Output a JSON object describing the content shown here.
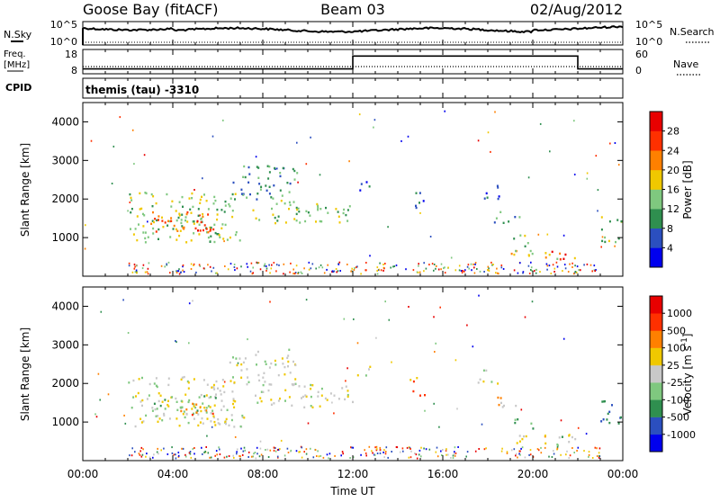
{
  "header": {
    "station": "Goose Bay (fitACF)",
    "beam": "Beam 03",
    "date": "02/Aug/2012"
  },
  "left_labels": {
    "nsky": "N.Sky",
    "freq": "Freq.",
    "freq_unit": "[MHz]",
    "cpid": "CPID"
  },
  "right_labels": {
    "nsearch": "N.Search",
    "nave": "Nave"
  },
  "noise_axis": {
    "top": "10^5",
    "bottom": "10^0"
  },
  "freq_axis": {
    "top": "18",
    "bottom": "8"
  },
  "nave_axis": {
    "top": "60",
    "bottom": "0"
  },
  "cpid_text": "themis (tau) -3310",
  "chart_data": [
    {
      "type": "line",
      "name": "noise-panel",
      "x_range_hours": [
        0,
        24
      ],
      "series": [
        {
          "name": "N.Sky",
          "style": "solid",
          "level_fraction": 0.72
        },
        {
          "name": "N.Search",
          "style": "dotted",
          "level_fraction": 0.1
        }
      ]
    },
    {
      "type": "line",
      "name": "frequency-panel",
      "series": [
        {
          "name": "Freq.",
          "x": [
            0,
            12,
            12,
            22,
            22,
            24
          ],
          "y_mhz": [
            10,
            10,
            15.3,
            15.3,
            10,
            10
          ]
        },
        {
          "name": "Nave",
          "style": "dotted",
          "y": 18
        }
      ]
    },
    {
      "type": "heatmap",
      "name": "power",
      "ylabel": "Slant Range [km]",
      "ylim": [
        0,
        4500
      ],
      "yticks": [
        1000,
        2000,
        3000,
        4000
      ],
      "colorbar_label": "Power [dB]",
      "colorbar_ticks": [
        "4",
        "8",
        "12",
        "16",
        "20",
        "24",
        "28"
      ],
      "colorbar_colors": [
        "#0000ee",
        "#2b4fbf",
        "#2f8f4f",
        "#7fc87f",
        "#f0c800",
        "#ff8000",
        "#ff3000",
        "#e80000"
      ],
      "regions": [
        {
          "t": [
            2.0,
            6.8
          ],
          "r": [
            900,
            2200
          ],
          "level": 3
        },
        {
          "t": [
            3.0,
            6.0
          ],
          "r": [
            1100,
            1700
          ],
          "level": 5
        },
        {
          "t": [
            4.3,
            5.8
          ],
          "r": [
            1200,
            1500
          ],
          "level": 6
        },
        {
          "t": [
            5.6,
            7.2
          ],
          "r": [
            900,
            1200
          ],
          "level": 3
        },
        {
          "t": [
            6.5,
            9.5
          ],
          "r": [
            2000,
            2900
          ],
          "level": 2
        },
        {
          "t": [
            7.5,
            12.0
          ],
          "r": [
            1400,
            2000
          ],
          "level": 3
        },
        {
          "t": [
            12.0,
            12.8
          ],
          "r": [
            2200,
            2500
          ],
          "level": 1
        },
        {
          "t": [
            14.5,
            15.2
          ],
          "r": [
            1700,
            2200
          ],
          "level": 1
        },
        {
          "t": [
            17.5,
            18.5
          ],
          "r": [
            2000,
            2400
          ],
          "level": 1
        },
        {
          "t": [
            18.2,
            19.5
          ],
          "r": [
            1400,
            1700
          ],
          "level": 2
        },
        {
          "t": [
            19.0,
            20.0
          ],
          "r": [
            800,
            1100
          ],
          "level": 3
        },
        {
          "t": [
            19.0,
            22.0
          ],
          "r": [
            450,
            700
          ],
          "level": 4
        },
        {
          "t": [
            20.8,
            21.6
          ],
          "r": [
            400,
            700
          ],
          "level": 6
        },
        {
          "t": [
            23.0,
            24.0
          ],
          "r": [
            900,
            1600
          ],
          "level": 3
        }
      ]
    },
    {
      "type": "heatmap",
      "name": "velocity",
      "ylabel": "Slant Range [km]",
      "ylim": [
        0,
        4500
      ],
      "yticks": [
        1000,
        2000,
        3000,
        4000
      ],
      "xlabel": "Time UT",
      "xticks": [
        "00:00",
        "04:00",
        "08:00",
        "12:00",
        "16:00",
        "20:00",
        "00:00"
      ],
      "colorbar_label": "Velocity [m s^-1]",
      "colorbar_ticks": [
        "1000",
        "500",
        "100",
        "25",
        "-25",
        "-100",
        "-500",
        "-1000"
      ],
      "colorbar_colors": [
        "#0000ee",
        "#2b4fbf",
        "#2f8f4f",
        "#7fc87f",
        "#c8c8c8",
        "#f0c800",
        "#ff8000",
        "#ff3000",
        "#e80000"
      ],
      "regions": [
        {
          "t": [
            2.0,
            6.8
          ],
          "r": [
            900,
            2200
          ],
          "level": 4
        },
        {
          "t": [
            3.0,
            6.0
          ],
          "r": [
            1100,
            1700
          ],
          "level": 3
        },
        {
          "t": [
            4.3,
            5.8
          ],
          "r": [
            1200,
            1600
          ],
          "level": 6
        },
        {
          "t": [
            5.6,
            7.2
          ],
          "r": [
            900,
            1200
          ],
          "level": 4
        },
        {
          "t": [
            6.5,
            9.5
          ],
          "r": [
            2000,
            2900
          ],
          "level": 4
        },
        {
          "t": [
            7.5,
            12.0
          ],
          "r": [
            1400,
            2000
          ],
          "level": 4
        },
        {
          "t": [
            12.0,
            12.8
          ],
          "r": [
            2200,
            2500
          ],
          "level": 4
        },
        {
          "t": [
            14.5,
            15.2
          ],
          "r": [
            1700,
            2200
          ],
          "level": 6
        },
        {
          "t": [
            17.5,
            18.5
          ],
          "r": [
            2000,
            2400
          ],
          "level": 4
        },
        {
          "t": [
            18.2,
            19.5
          ],
          "r": [
            1400,
            1700
          ],
          "level": 5
        },
        {
          "t": [
            19.0,
            20.0
          ],
          "r": [
            800,
            1100
          ],
          "level": 2
        },
        {
          "t": [
            19.0,
            22.0
          ],
          "r": [
            450,
            700
          ],
          "level": 5
        },
        {
          "t": [
            20.8,
            21.6
          ],
          "r": [
            400,
            700
          ],
          "level": 3
        },
        {
          "t": [
            23.0,
            24.0
          ],
          "r": [
            900,
            1600
          ],
          "level": 2
        }
      ]
    }
  ]
}
